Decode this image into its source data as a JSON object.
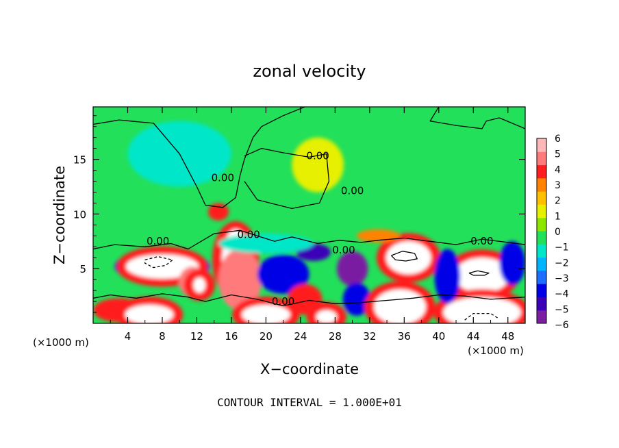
{
  "chart_data": {
    "type": "heatmap",
    "title": "zonal velocity",
    "xlabel": "X−coordinate",
    "ylabel": "Z−coordinate",
    "x_unit_left": "(×1000 m)",
    "x_unit_right": "(×1000 m)",
    "footer": "CONTOUR INTERVAL = 1.000E+01",
    "xlim": [
      0,
      50
    ],
    "ylim": [
      0,
      19.8
    ],
    "x_ticks": [
      4,
      8,
      12,
      16,
      20,
      24,
      28,
      32,
      36,
      40,
      44,
      48
    ],
    "x_tick_labels": [
      "4",
      "8",
      "12",
      "16",
      "20",
      "24",
      "28",
      "32",
      "36",
      "40",
      "44",
      "48"
    ],
    "y_ticks": [
      5,
      10,
      15
    ],
    "y_tick_labels": [
      "5",
      "10",
      "15"
    ],
    "colorbar": {
      "range": [
        -6,
        6
      ],
      "tick_labels": [
        "6",
        "5",
        "4",
        "3",
        "2",
        "1",
        "0",
        "−1",
        "−2",
        "−3",
        "−4",
        "−5",
        "−6"
      ],
      "colors": [
        "#7a1fa2",
        "#3b00b8",
        "#0000e6",
        "#1e6eff",
        "#00b4ff",
        "#00e6c8",
        "#22e05a",
        "#8ce600",
        "#e6f000",
        "#ffc000",
        "#ff8200",
        "#ff1e1e",
        "#ff7a7a",
        "#ffb8b8"
      ]
    },
    "contour_labels": [
      {
        "text": "0.00",
        "x": 15,
        "y": 13
      },
      {
        "text": "0.00",
        "x": 26,
        "y": 15
      },
      {
        "text": "0.00",
        "x": 30,
        "y": 11.8
      },
      {
        "text": "0.00",
        "x": 7.5,
        "y": 7.2
      },
      {
        "text": "0.00",
        "x": 18,
        "y": 7.8
      },
      {
        "text": "0.00",
        "x": 29,
        "y": 6.4
      },
      {
        "text": "0.00",
        "x": 45,
        "y": 7.2
      },
      {
        "text": "0.00",
        "x": 22,
        "y": 1.7
      }
    ],
    "blobs": [
      {
        "x": 8,
        "y": 5.2,
        "rx": 5.5,
        "ry": 1.5,
        "v": -3.5
      },
      {
        "x": 8,
        "y": 5.2,
        "rx": 4.2,
        "ry": 1.1,
        "v": 7
      },
      {
        "x": 16.5,
        "y": 5.8,
        "rx": 1.6,
        "ry": 2.8,
        "v": 7
      },
      {
        "x": 17,
        "y": 4,
        "rx": 2.5,
        "ry": 2.8,
        "v": 4.5
      },
      {
        "x": 11.5,
        "y": 3.8,
        "rx": 1.6,
        "ry": 1.4,
        "v": 5
      },
      {
        "x": 12.3,
        "y": 3.5,
        "rx": 0.7,
        "ry": 0.7,
        "v": 7
      },
      {
        "x": 22,
        "y": 4.5,
        "rx": 3,
        "ry": 1.8,
        "v": -4
      },
      {
        "x": 25.5,
        "y": 6.5,
        "rx": 2,
        "ry": 0.8,
        "v": -4.5
      },
      {
        "x": 30,
        "y": 5,
        "rx": 1.8,
        "ry": 1.6,
        "v": -5.5
      },
      {
        "x": 30.5,
        "y": 2.2,
        "rx": 1.6,
        "ry": 1.5,
        "v": -4
      },
      {
        "x": 36.5,
        "y": 6,
        "rx": 3.5,
        "ry": 2.1,
        "v": 5.5
      },
      {
        "x": 36.5,
        "y": 6,
        "rx": 2.6,
        "ry": 1.5,
        "v": 7
      },
      {
        "x": 45,
        "y": 4.4,
        "rx": 4.2,
        "ry": 2.3,
        "v": 5.5
      },
      {
        "x": 45,
        "y": 4.4,
        "rx": 3.2,
        "ry": 1.6,
        "v": 7
      },
      {
        "x": 35.5,
        "y": 1.5,
        "rx": 3,
        "ry": 1.6,
        "v": 7
      },
      {
        "x": 45,
        "y": 1,
        "rx": 4.5,
        "ry": 1.4,
        "v": 7
      },
      {
        "x": 41,
        "y": 4.3,
        "rx": 1.5,
        "ry": 2.5,
        "v": -4
      },
      {
        "x": 48.5,
        "y": 5.5,
        "rx": 1.5,
        "ry": 2,
        "v": -3.5
      },
      {
        "x": 3,
        "y": 1.2,
        "rx": 3,
        "ry": 1.1,
        "v": 4
      },
      {
        "x": 6.5,
        "y": 0.8,
        "rx": 2.8,
        "ry": 0.9,
        "v": 7
      },
      {
        "x": 20,
        "y": 0.8,
        "rx": 2.8,
        "ry": 0.9,
        "v": 7
      },
      {
        "x": 27,
        "y": 0.6,
        "rx": 1.2,
        "ry": 0.6,
        "v": 7
      },
      {
        "x": 24.5,
        "y": 2.2,
        "rx": 2,
        "ry": 1.4,
        "v": 4
      },
      {
        "x": 14.5,
        "y": 10.2,
        "rx": 1.2,
        "ry": 0.8,
        "v": 4
      },
      {
        "x": 20,
        "y": 7.3,
        "rx": 5.5,
        "ry": 0.9,
        "v": -1.5
      },
      {
        "x": 33,
        "y": 8,
        "rx": 2.5,
        "ry": 0.6,
        "v": 3
      },
      {
        "x": 10,
        "y": 15.5,
        "rx": 6,
        "ry": 3,
        "v": -1.2
      },
      {
        "x": 26,
        "y": 14.5,
        "rx": 3,
        "ry": 2.5,
        "v": 1
      }
    ],
    "contours": [
      {
        "style": "solid",
        "points": [
          [
            0,
            18.2
          ],
          [
            3,
            18.6
          ],
          [
            7,
            18.3
          ],
          [
            10,
            15.5
          ],
          [
            12,
            12.5
          ],
          [
            13,
            10.8
          ],
          [
            15,
            10.6
          ],
          [
            16.5,
            11.5
          ],
          [
            17,
            13.5
          ],
          [
            17.5,
            15
          ],
          [
            18.5,
            17
          ],
          [
            19.5,
            18
          ],
          [
            22,
            19
          ],
          [
            24.5,
            19.8
          ]
        ]
      },
      {
        "style": "solid",
        "points": [
          [
            40,
            19.8
          ],
          [
            39,
            18.5
          ],
          [
            42,
            18.1
          ],
          [
            45,
            17.8
          ],
          [
            45.5,
            18.5
          ],
          [
            47,
            18.8
          ],
          [
            50,
            17.8
          ]
        ]
      },
      {
        "style": "solid",
        "points": [
          [
            17.5,
            15.3
          ],
          [
            19.5,
            16
          ],
          [
            22,
            15.6
          ],
          [
            25,
            15.2
          ],
          [
            27,
            15.5
          ],
          [
            27.3,
            13
          ],
          [
            26.2,
            11
          ],
          [
            23,
            10.5
          ],
          [
            19,
            11.3
          ],
          [
            17.5,
            13
          ]
        ]
      },
      {
        "style": "solid",
        "points": [
          [
            0,
            6.8
          ],
          [
            2.5,
            7.2
          ],
          [
            6,
            7
          ],
          [
            9,
            7.3
          ],
          [
            11,
            6.8
          ],
          [
            14,
            8.2
          ],
          [
            17,
            8.5
          ],
          [
            19,
            8
          ],
          [
            21,
            7.5
          ],
          [
            23,
            7.9
          ],
          [
            26,
            7.3
          ],
          [
            28.5,
            7.6
          ],
          [
            31,
            7.4
          ],
          [
            33,
            7.6
          ],
          [
            36,
            7.8
          ],
          [
            39,
            7.5
          ],
          [
            42,
            7.2
          ],
          [
            45,
            7.7
          ],
          [
            48,
            7.4
          ],
          [
            50,
            7.2
          ]
        ]
      },
      {
        "style": "solid",
        "points": [
          [
            0,
            2.3
          ],
          [
            2,
            2.6
          ],
          [
            5,
            2.3
          ],
          [
            8,
            2.7
          ],
          [
            11,
            2.4
          ],
          [
            13,
            2
          ],
          [
            16,
            2.6
          ],
          [
            19,
            2.2
          ],
          [
            22,
            1.6
          ],
          [
            25,
            2.1
          ],
          [
            28,
            1.8
          ],
          [
            31,
            1.9
          ],
          [
            34,
            2.1
          ],
          [
            37,
            2.3
          ],
          [
            40,
            2.6
          ],
          [
            43,
            2.5
          ],
          [
            46,
            2.2
          ],
          [
            50,
            2.4
          ]
        ]
      },
      {
        "style": "solid",
        "points": [
          [
            34.5,
            6.2
          ],
          [
            35.8,
            6.6
          ],
          [
            37.2,
            6.4
          ],
          [
            37.5,
            5.9
          ],
          [
            36.2,
            5.7
          ],
          [
            35,
            5.8
          ],
          [
            34.5,
            6.2
          ]
        ]
      },
      {
        "style": "solid",
        "points": [
          [
            43.5,
            4.6
          ],
          [
            44.5,
            4.8
          ],
          [
            45.8,
            4.6
          ],
          [
            45.3,
            4.4
          ],
          [
            44,
            4.4
          ],
          [
            43.5,
            4.6
          ]
        ]
      },
      {
        "style": "dashed",
        "points": [
          [
            6,
            5.8
          ],
          [
            7.5,
            6.1
          ],
          [
            9.2,
            5.8
          ],
          [
            8.4,
            5.3
          ],
          [
            7,
            5.1
          ],
          [
            6,
            5.5
          ],
          [
            6,
            5.8
          ]
        ]
      },
      {
        "style": "dashed",
        "points": [
          [
            43,
            0.3
          ],
          [
            44,
            0.9
          ],
          [
            46,
            0.9
          ],
          [
            47,
            0.4
          ]
        ]
      }
    ]
  }
}
